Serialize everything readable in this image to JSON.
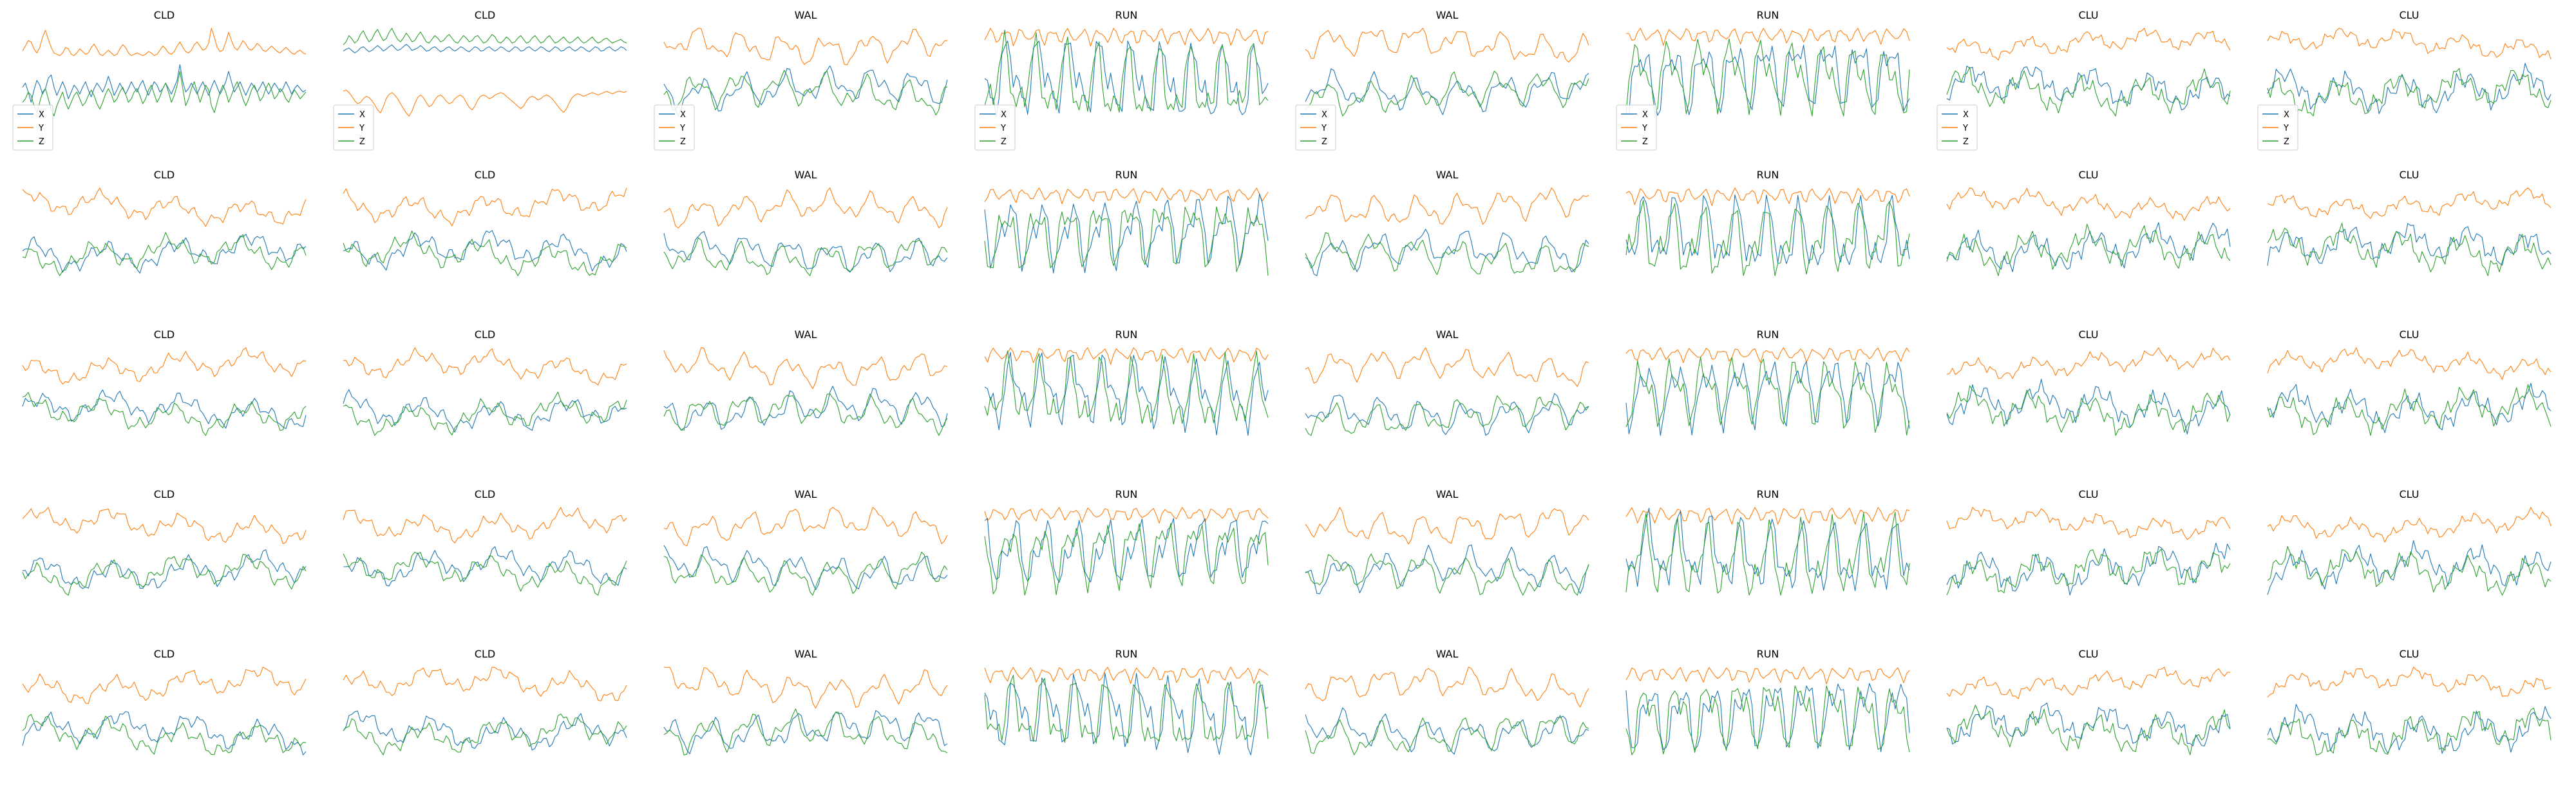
{
  "figure": {
    "legend_entries": [
      "X",
      "Y",
      "Z"
    ]
  },
  "chart_data": {
    "type": "line",
    "layout_grid": "5 rows x 8 columns",
    "grid": false,
    "axes_visible": false,
    "legend_placement": "lower-left (first row of panels only)",
    "series_colors": {
      "X": "#1f77b4",
      "Y": "#ff7f0e",
      "Z": "#2ca02c"
    },
    "x": [
      0,
      1,
      2,
      3,
      4,
      5,
      6,
      7,
      8,
      9,
      10,
      11,
      12,
      13,
      14,
      15,
      16,
      17,
      18,
      19,
      20,
      21,
      22,
      23,
      24,
      25,
      26,
      27,
      28,
      29,
      30,
      31,
      32,
      33,
      34,
      35,
      36,
      37,
      38,
      39,
      40,
      41,
      42,
      43,
      44,
      45,
      46,
      47,
      48,
      49,
      50,
      51,
      52,
      53,
      54,
      55,
      56,
      57,
      58,
      59,
      60,
      61,
      62,
      63,
      64,
      65,
      66,
      67,
      68,
      69,
      70,
      71,
      72,
      73,
      74,
      75,
      76,
      77,
      78,
      79,
      80,
      81,
      82,
      83,
      84,
      85,
      86,
      87,
      88,
      89,
      90,
      91,
      92,
      93,
      94,
      95,
      96,
      97,
      98,
      99
    ],
    "row_titles": [
      [
        "CLD",
        "CLD",
        "WAL",
        "RUN",
        "WAL",
        "RUN",
        "CLU",
        "CLU"
      ],
      [
        "CLD",
        "CLD",
        "WAL",
        "RUN",
        "WAL",
        "RUN",
        "CLU",
        "CLU"
      ],
      [
        "CLD",
        "CLD",
        "WAL",
        "RUN",
        "WAL",
        "RUN",
        "CLU",
        "CLU"
      ],
      [
        "CLD",
        "CLD",
        "WAL",
        "RUN",
        "WAL",
        "RUN",
        "CLU",
        "CLU"
      ],
      [
        "CLD",
        "CLD",
        "WAL",
        "RUN",
        "WAL",
        "RUN",
        "CLU",
        "CLU"
      ]
    ],
    "panels": [
      {
        "title": "CLD",
        "series": [
          {
            "name": "X",
            "values": [
              0.12,
              0.18,
              0.05,
              -0.1,
              0.08,
              0.22,
              0.15,
              0.02,
              0.1,
              0.25,
              0.3,
              0.12,
              0.0,
              0.1,
              0.2,
              0.1,
              -0.05,
              0.05,
              0.15,
              0.1,
              0.02,
              0.12,
              0.2,
              0.08,
              -0.02,
              0.1,
              0.18,
              0.12,
              0.05,
              0.15,
              0.28,
              0.15,
              0.0,
              0.08,
              0.18,
              0.1,
              0.02,
              0.1,
              0.2,
              0.12,
              0.05,
              0.15,
              0.22,
              0.1,
              0.0,
              0.1,
              0.2,
              0.15,
              0.05,
              0.1,
              0.18,
              0.1,
              0.02,
              0.12,
              0.22,
              0.45,
              0.2,
              0.05,
              0.1,
              0.18,
              0.1,
              0.02,
              0.12,
              0.2,
              0.1,
              0.0,
              0.12,
              0.22,
              0.12,
              0.02,
              0.1,
              0.2,
              0.35,
              0.2,
              0.05,
              0.12,
              0.2,
              0.1,
              0.0,
              0.1,
              0.18,
              0.12,
              0.05,
              0.12,
              0.2,
              0.1,
              0.02,
              0.1,
              0.18,
              0.12,
              0.05,
              0.1,
              0.2,
              0.12,
              0.02,
              0.1,
              0.15,
              0.1,
              0.05,
              0.08
            ]
          },
          {
            "name": "Y",
            "values": [
              0.65,
              0.72,
              0.8,
              0.78,
              0.68,
              0.62,
              0.7,
              0.85,
              0.95,
              0.82,
              0.7,
              0.62,
              0.6,
              0.58,
              0.62,
              0.7,
              0.68,
              0.6,
              0.58,
              0.62,
              0.68,
              0.64,
              0.6,
              0.62,
              0.7,
              0.75,
              0.68,
              0.6,
              0.58,
              0.62,
              0.66,
              0.62,
              0.58,
              0.6,
              0.68,
              0.74,
              0.7,
              0.62,
              0.58,
              0.6,
              0.62,
              0.6,
              0.58,
              0.6,
              0.64,
              0.62,
              0.58,
              0.6,
              0.66,
              0.72,
              0.68,
              0.62,
              0.6,
              0.64,
              0.72,
              0.78,
              0.7,
              0.64,
              0.62,
              0.66,
              0.74,
              0.78,
              0.72,
              0.66,
              0.68,
              0.76,
              0.98,
              0.85,
              0.7,
              0.64,
              0.66,
              0.78,
              0.92,
              0.8,
              0.7,
              0.66,
              0.72,
              0.8,
              0.75,
              0.68,
              0.66,
              0.7,
              0.76,
              0.72,
              0.66,
              0.64,
              0.68,
              0.72,
              0.68,
              0.64,
              0.62,
              0.66,
              0.7,
              0.66,
              0.62,
              0.6,
              0.64,
              0.66,
              0.62,
              0.6
            ]
          },
          {
            "name": "Z",
            "values": [
              -0.1,
              -0.05,
              0.05,
              0.0,
              -0.15,
              -0.25,
              -0.1,
              0.05,
              0.1,
              -0.05,
              -0.2,
              -0.3,
              -0.15,
              -0.05,
              0.05,
              -0.1,
              -0.2,
              -0.1,
              0.0,
              0.05,
              -0.05,
              -0.15,
              -0.1,
              0.0,
              0.08,
              0.0,
              -0.12,
              -0.2,
              -0.1,
              0.02,
              0.1,
              0.02,
              -0.1,
              -0.05,
              0.05,
              0.12,
              0.02,
              -0.1,
              -0.05,
              0.05,
              0.1,
              0.0,
              -0.12,
              -0.05,
              0.08,
              0.15,
              0.02,
              -0.1,
              -0.02,
              0.1,
              0.18,
              0.05,
              -0.1,
              0.0,
              0.15,
              0.35,
              0.1,
              -0.15,
              -0.05,
              0.1,
              0.2,
              0.05,
              -0.1,
              0.02,
              0.15,
              0.08,
              -0.15,
              -0.25,
              -0.1,
              0.05,
              0.15,
              0.05,
              -0.1,
              0.0,
              0.12,
              0.2,
              0.08,
              -0.05,
              -0.15,
              -0.05,
              0.08,
              0.15,
              0.05,
              -0.08,
              -0.02,
              0.1,
              0.18,
              0.08,
              -0.05,
              0.0,
              0.1,
              0.05,
              -0.05,
              -0.1,
              0.0,
              0.08,
              0.02,
              -0.05,
              0.0,
              0.05
            ]
          }
        ]
      },
      {
        "title": "CLD",
        "series": [
          {
            "name": "X",
            "values": [
              0.05,
              0.08,
              0.1,
              0.06,
              0.02,
              0.05,
              0.1,
              0.12,
              0.08,
              0.04,
              0.06,
              0.1,
              0.14,
              0.1,
              0.05,
              0.08,
              0.12,
              0.15,
              0.1,
              0.06,
              0.08,
              0.12,
              0.16,
              0.12,
              0.06,
              0.08,
              0.1,
              0.14,
              0.1,
              0.05,
              0.06,
              0.1,
              0.12,
              0.08,
              0.04,
              0.06,
              0.1,
              0.12,
              0.08,
              0.05,
              0.08,
              0.12,
              0.1,
              0.06,
              0.04,
              0.08,
              0.12,
              0.1,
              0.05,
              0.06,
              0.1,
              0.12,
              0.08,
              0.05,
              0.08,
              0.12,
              0.1,
              0.06,
              0.04,
              0.08,
              0.12,
              0.1,
              0.05,
              0.06,
              0.1,
              0.12,
              0.08,
              0.05,
              0.08,
              0.12,
              0.1,
              0.06,
              0.04,
              0.08,
              0.12,
              0.1,
              0.05,
              0.06,
              0.1,
              0.12,
              0.08,
              0.05,
              0.08,
              0.12,
              0.1,
              0.06,
              0.04,
              0.08,
              0.12,
              0.1,
              0.05,
              0.06,
              0.1,
              0.12,
              0.08,
              0.05,
              0.08,
              0.12,
              0.1,
              0.06
            ]
          },
          {
            "name": "Y",
            "values": [
              -0.6,
              -0.58,
              -0.62,
              -0.68,
              -0.75,
              -0.8,
              -0.78,
              -0.72,
              -0.68,
              -0.7,
              -0.75,
              -0.82,
              -0.9,
              -0.95,
              -0.85,
              -0.72,
              -0.65,
              -0.62,
              -0.66,
              -0.72,
              -0.8,
              -0.88,
              -0.95,
              -1.0,
              -0.92,
              -0.8,
              -0.7,
              -0.66,
              -0.7,
              -0.78,
              -0.85,
              -0.82,
              -0.74,
              -0.68,
              -0.66,
              -0.7,
              -0.76,
              -0.8,
              -0.78,
              -0.72,
              -0.68,
              -0.66,
              -0.7,
              -0.78,
              -0.86,
              -0.9,
              -0.84,
              -0.74,
              -0.68,
              -0.66,
              -0.68,
              -0.72,
              -0.7,
              -0.66,
              -0.64,
              -0.62,
              -0.64,
              -0.68,
              -0.72,
              -0.76,
              -0.8,
              -0.84,
              -0.88,
              -0.84,
              -0.76,
              -0.7,
              -0.68,
              -0.7,
              -0.74,
              -0.72,
              -0.68,
              -0.66,
              -0.68,
              -0.72,
              -0.78,
              -0.84,
              -0.9,
              -0.94,
              -0.88,
              -0.78,
              -0.7,
              -0.66,
              -0.64,
              -0.66,
              -0.68,
              -0.66,
              -0.64,
              -0.62,
              -0.64,
              -0.66,
              -0.64,
              -0.62,
              -0.6,
              -0.62,
              -0.64,
              -0.62,
              -0.6,
              -0.6,
              -0.62,
              -0.6
            ]
          },
          {
            "name": "Z",
            "values": [
              0.15,
              0.2,
              0.3,
              0.25,
              0.18,
              0.22,
              0.32,
              0.38,
              0.28,
              0.2,
              0.24,
              0.34,
              0.4,
              0.3,
              0.22,
              0.25,
              0.35,
              0.42,
              0.32,
              0.24,
              0.2,
              0.26,
              0.34,
              0.28,
              0.2,
              0.22,
              0.3,
              0.36,
              0.28,
              0.2,
              0.18,
              0.24,
              0.3,
              0.26,
              0.2,
              0.22,
              0.28,
              0.32,
              0.26,
              0.2,
              0.18,
              0.24,
              0.3,
              0.26,
              0.2,
              0.22,
              0.28,
              0.3,
              0.24,
              0.18,
              0.2,
              0.26,
              0.32,
              0.28,
              0.2,
              0.18,
              0.22,
              0.28,
              0.24,
              0.18,
              0.2,
              0.26,
              0.3,
              0.24,
              0.18,
              0.2,
              0.26,
              0.3,
              0.24,
              0.18,
              0.2,
              0.26,
              0.3,
              0.24,
              0.18,
              0.2,
              0.24,
              0.28,
              0.22,
              0.18,
              0.2,
              0.24,
              0.28,
              0.22,
              0.18,
              0.2,
              0.24,
              0.28,
              0.22,
              0.18,
              0.2,
              0.24,
              0.26,
              0.22,
              0.18,
              0.2,
              0.22,
              0.24,
              0.2,
              0.18
            ]
          }
        ]
      }
    ]
  }
}
